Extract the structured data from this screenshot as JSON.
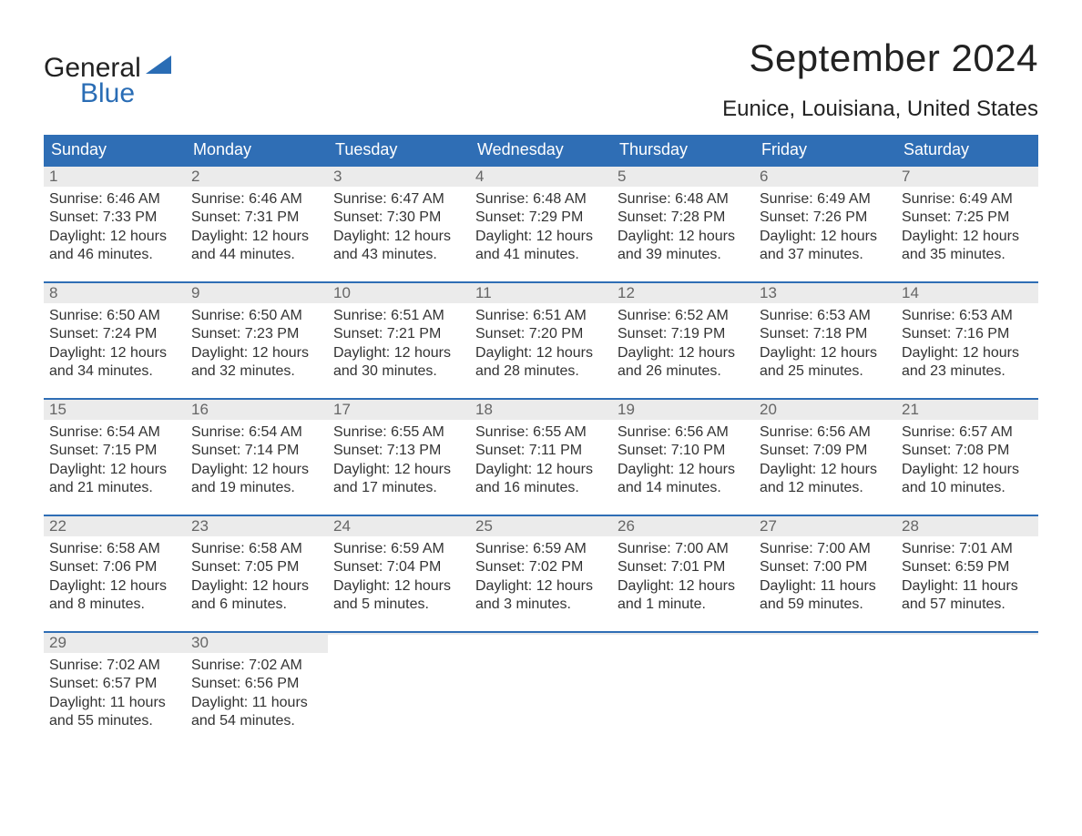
{
  "brand": {
    "word1": "General",
    "word2": "Blue",
    "color_dark": "#222222",
    "color_blue": "#2a6db5"
  },
  "header": {
    "month_title": "September 2024",
    "location": "Eunice, Louisiana, United States"
  },
  "styling": {
    "header_bg": "#2f6eb5",
    "header_text": "#ffffff",
    "daynum_bg": "#ebebeb",
    "daynum_border": "#2f6eb5",
    "daynum_text": "#666666",
    "body_text": "#333333",
    "page_bg": "#ffffff",
    "dow_fontsize": 18,
    "title_fontsize": 42,
    "location_fontsize": 24,
    "body_fontsize": 16
  },
  "days_of_week": [
    "Sunday",
    "Monday",
    "Tuesday",
    "Wednesday",
    "Thursday",
    "Friday",
    "Saturday"
  ],
  "weeks": [
    [
      {
        "n": "1",
        "sunrise": "Sunrise: 6:46 AM",
        "sunset": "Sunset: 7:33 PM",
        "day1": "Daylight: 12 hours",
        "day2": "and 46 minutes."
      },
      {
        "n": "2",
        "sunrise": "Sunrise: 6:46 AM",
        "sunset": "Sunset: 7:31 PM",
        "day1": "Daylight: 12 hours",
        "day2": "and 44 minutes."
      },
      {
        "n": "3",
        "sunrise": "Sunrise: 6:47 AM",
        "sunset": "Sunset: 7:30 PM",
        "day1": "Daylight: 12 hours",
        "day2": "and 43 minutes."
      },
      {
        "n": "4",
        "sunrise": "Sunrise: 6:48 AM",
        "sunset": "Sunset: 7:29 PM",
        "day1": "Daylight: 12 hours",
        "day2": "and 41 minutes."
      },
      {
        "n": "5",
        "sunrise": "Sunrise: 6:48 AM",
        "sunset": "Sunset: 7:28 PM",
        "day1": "Daylight: 12 hours",
        "day2": "and 39 minutes."
      },
      {
        "n": "6",
        "sunrise": "Sunrise: 6:49 AM",
        "sunset": "Sunset: 7:26 PM",
        "day1": "Daylight: 12 hours",
        "day2": "and 37 minutes."
      },
      {
        "n": "7",
        "sunrise": "Sunrise: 6:49 AM",
        "sunset": "Sunset: 7:25 PM",
        "day1": "Daylight: 12 hours",
        "day2": "and 35 minutes."
      }
    ],
    [
      {
        "n": "8",
        "sunrise": "Sunrise: 6:50 AM",
        "sunset": "Sunset: 7:24 PM",
        "day1": "Daylight: 12 hours",
        "day2": "and 34 minutes."
      },
      {
        "n": "9",
        "sunrise": "Sunrise: 6:50 AM",
        "sunset": "Sunset: 7:23 PM",
        "day1": "Daylight: 12 hours",
        "day2": "and 32 minutes."
      },
      {
        "n": "10",
        "sunrise": "Sunrise: 6:51 AM",
        "sunset": "Sunset: 7:21 PM",
        "day1": "Daylight: 12 hours",
        "day2": "and 30 minutes."
      },
      {
        "n": "11",
        "sunrise": "Sunrise: 6:51 AM",
        "sunset": "Sunset: 7:20 PM",
        "day1": "Daylight: 12 hours",
        "day2": "and 28 minutes."
      },
      {
        "n": "12",
        "sunrise": "Sunrise: 6:52 AM",
        "sunset": "Sunset: 7:19 PM",
        "day1": "Daylight: 12 hours",
        "day2": "and 26 minutes."
      },
      {
        "n": "13",
        "sunrise": "Sunrise: 6:53 AM",
        "sunset": "Sunset: 7:18 PM",
        "day1": "Daylight: 12 hours",
        "day2": "and 25 minutes."
      },
      {
        "n": "14",
        "sunrise": "Sunrise: 6:53 AM",
        "sunset": "Sunset: 7:16 PM",
        "day1": "Daylight: 12 hours",
        "day2": "and 23 minutes."
      }
    ],
    [
      {
        "n": "15",
        "sunrise": "Sunrise: 6:54 AM",
        "sunset": "Sunset: 7:15 PM",
        "day1": "Daylight: 12 hours",
        "day2": "and 21 minutes."
      },
      {
        "n": "16",
        "sunrise": "Sunrise: 6:54 AM",
        "sunset": "Sunset: 7:14 PM",
        "day1": "Daylight: 12 hours",
        "day2": "and 19 minutes."
      },
      {
        "n": "17",
        "sunrise": "Sunrise: 6:55 AM",
        "sunset": "Sunset: 7:13 PM",
        "day1": "Daylight: 12 hours",
        "day2": "and 17 minutes."
      },
      {
        "n": "18",
        "sunrise": "Sunrise: 6:55 AM",
        "sunset": "Sunset: 7:11 PM",
        "day1": "Daylight: 12 hours",
        "day2": "and 16 minutes."
      },
      {
        "n": "19",
        "sunrise": "Sunrise: 6:56 AM",
        "sunset": "Sunset: 7:10 PM",
        "day1": "Daylight: 12 hours",
        "day2": "and 14 minutes."
      },
      {
        "n": "20",
        "sunrise": "Sunrise: 6:56 AM",
        "sunset": "Sunset: 7:09 PM",
        "day1": "Daylight: 12 hours",
        "day2": "and 12 minutes."
      },
      {
        "n": "21",
        "sunrise": "Sunrise: 6:57 AM",
        "sunset": "Sunset: 7:08 PM",
        "day1": "Daylight: 12 hours",
        "day2": "and 10 minutes."
      }
    ],
    [
      {
        "n": "22",
        "sunrise": "Sunrise: 6:58 AM",
        "sunset": "Sunset: 7:06 PM",
        "day1": "Daylight: 12 hours",
        "day2": "and 8 minutes."
      },
      {
        "n": "23",
        "sunrise": "Sunrise: 6:58 AM",
        "sunset": "Sunset: 7:05 PM",
        "day1": "Daylight: 12 hours",
        "day2": "and 6 minutes."
      },
      {
        "n": "24",
        "sunrise": "Sunrise: 6:59 AM",
        "sunset": "Sunset: 7:04 PM",
        "day1": "Daylight: 12 hours",
        "day2": "and 5 minutes."
      },
      {
        "n": "25",
        "sunrise": "Sunrise: 6:59 AM",
        "sunset": "Sunset: 7:02 PM",
        "day1": "Daylight: 12 hours",
        "day2": "and 3 minutes."
      },
      {
        "n": "26",
        "sunrise": "Sunrise: 7:00 AM",
        "sunset": "Sunset: 7:01 PM",
        "day1": "Daylight: 12 hours",
        "day2": "and 1 minute."
      },
      {
        "n": "27",
        "sunrise": "Sunrise: 7:00 AM",
        "sunset": "Sunset: 7:00 PM",
        "day1": "Daylight: 11 hours",
        "day2": "and 59 minutes."
      },
      {
        "n": "28",
        "sunrise": "Sunrise: 7:01 AM",
        "sunset": "Sunset: 6:59 PM",
        "day1": "Daylight: 11 hours",
        "day2": "and 57 minutes."
      }
    ],
    [
      {
        "n": "29",
        "sunrise": "Sunrise: 7:02 AM",
        "sunset": "Sunset: 6:57 PM",
        "day1": "Daylight: 11 hours",
        "day2": "and 55 minutes."
      },
      {
        "n": "30",
        "sunrise": "Sunrise: 7:02 AM",
        "sunset": "Sunset: 6:56 PM",
        "day1": "Daylight: 11 hours",
        "day2": "and 54 minutes."
      },
      {
        "empty": true,
        "n": " ",
        "sunrise": "",
        "sunset": "",
        "day1": "",
        "day2": ""
      },
      {
        "empty": true,
        "n": " ",
        "sunrise": "",
        "sunset": "",
        "day1": "",
        "day2": ""
      },
      {
        "empty": true,
        "n": " ",
        "sunrise": "",
        "sunset": "",
        "day1": "",
        "day2": ""
      },
      {
        "empty": true,
        "n": " ",
        "sunrise": "",
        "sunset": "",
        "day1": "",
        "day2": ""
      },
      {
        "empty": true,
        "n": " ",
        "sunrise": "",
        "sunset": "",
        "day1": "",
        "day2": ""
      }
    ]
  ]
}
